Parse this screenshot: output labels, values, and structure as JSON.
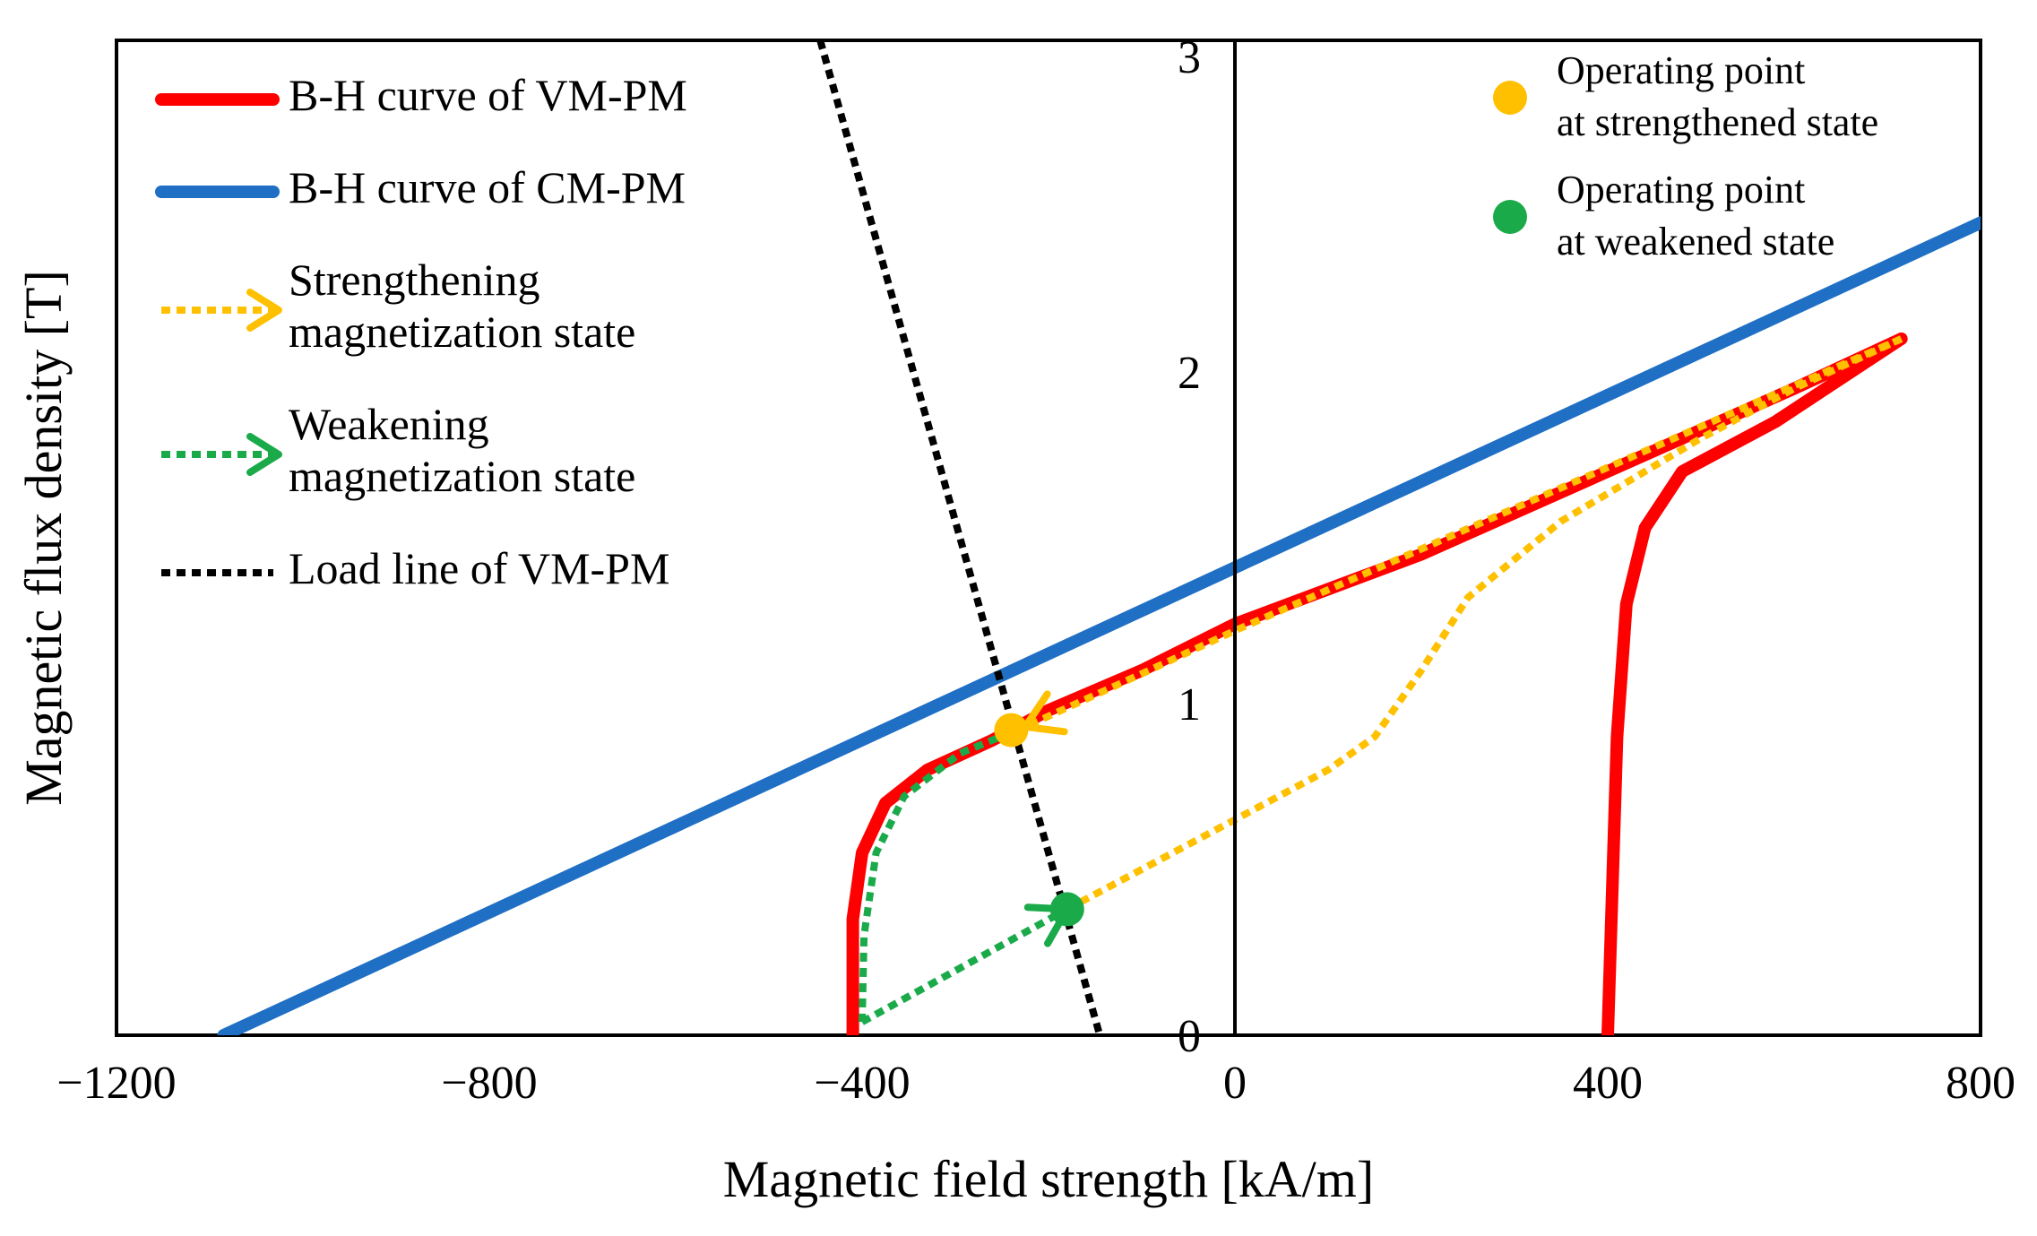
{
  "chart_data": {
    "type": "line",
    "title": "",
    "xlabel": "Magnetic field strength [kA/m]",
    "ylabel": "Magnetic flux density [T]",
    "xlim": [
      -1200,
      800
    ],
    "ylim": [
      0,
      3
    ],
    "x_ticks": [
      -1200,
      -800,
      -400,
      0,
      400,
      800
    ],
    "x_tick_labels": [
      "−1200",
      "−800",
      "−400",
      "0",
      "400",
      "800"
    ],
    "y_ticks": [
      0,
      1,
      2,
      3
    ],
    "y_tick_labels": [
      "0",
      "1",
      "2",
      "3"
    ],
    "grid": false,
    "series": [
      {
        "name": "B-H curve of VM-PM",
        "color": "#ff0000",
        "style": "solid",
        "segments": [
          [
            [
              -410,
              0
            ],
            [
              -410,
              0.35
            ],
            [
              -400,
              0.55
            ],
            [
              -375,
              0.7
            ],
            [
              -330,
              0.8
            ],
            [
              -260,
              0.89
            ],
            [
              -200,
              0.98
            ],
            [
              -100,
              1.1
            ],
            [
              0,
              1.24
            ],
            [
              200,
              1.45
            ],
            [
              400,
              1.7
            ],
            [
              600,
              1.95
            ],
            [
              715,
              2.1
            ]
          ],
          [
            [
              400,
              0
            ],
            [
              410,
              0.9
            ],
            [
              420,
              1.3
            ],
            [
              440,
              1.53
            ],
            [
              480,
              1.7
            ],
            [
              580,
              1.85
            ],
            [
              715,
              2.1
            ]
          ]
        ]
      },
      {
        "name": "B-H curve of CM-PM",
        "color": "#1f6fc4",
        "style": "solid",
        "segments": [
          [
            [
              -1085,
              0
            ],
            [
              800,
              2.45
            ]
          ]
        ]
      },
      {
        "name": "Strengthening magnetization state",
        "color": "#ffc000",
        "style": "dotted",
        "arrow_at": [
          -225,
          0.93
        ],
        "segments": [
          [
            [
              -180,
              0.38
            ],
            [
              0,
              0.65
            ],
            [
              100,
              0.8
            ],
            [
              150,
              0.9
            ],
            [
              200,
              1.1
            ],
            [
              250,
              1.32
            ],
            [
              350,
              1.55
            ],
            [
              500,
              1.8
            ],
            [
              600,
              1.95
            ],
            [
              715,
              2.1
            ]
          ],
          [
            [
              715,
              2.1
            ],
            [
              0,
              1.22
            ],
            [
              -100,
              1.09
            ],
            [
              -225,
              0.93
            ]
          ]
        ]
      },
      {
        "name": "Weakening magnetization state",
        "color": "#1aaa4a",
        "style": "dotted",
        "arrow_at": [
          -180,
          0.38
        ],
        "segments": [
          [
            [
              -225,
              0.93
            ],
            [
              -295,
              0.85
            ],
            [
              -355,
              0.72
            ],
            [
              -385,
              0.55
            ],
            [
              -398,
              0.3
            ],
            [
              -400,
              0.04
            ]
          ],
          [
            [
              -400,
              0.04
            ],
            [
              -180,
              0.38
            ]
          ]
        ]
      },
      {
        "name": "Load line of VM-PM",
        "color": "#000000",
        "style": "dotted",
        "segments": [
          [
            [
              -445,
              3
            ],
            [
              -145,
              0
            ]
          ]
        ]
      }
    ],
    "points": [
      {
        "name": "Operating point at strengthened state",
        "x": -240,
        "y": 0.92,
        "color": "#ffc000"
      },
      {
        "name": "Operating point at weakened state",
        "x": -180,
        "y": 0.38,
        "color": "#1aaa4a"
      }
    ],
    "legend": {
      "placement": "top-left",
      "items": [
        {
          "lines": [
            "B-H curve of VM-PM"
          ],
          "color": "#ff0000",
          "style": "solid",
          "arrow": false
        },
        {
          "lines": [
            "B-H curve of CM-PM"
          ],
          "color": "#1f6fc4",
          "style": "solid",
          "arrow": false
        },
        {
          "lines": [
            "Strengthening",
            "magnetization state"
          ],
          "color": "#ffc000",
          "style": "dotted",
          "arrow": true
        },
        {
          "lines": [
            "Weakening",
            "magnetization state"
          ],
          "color": "#1aaa4a",
          "style": "dotted",
          "arrow": true
        },
        {
          "lines": [
            "Load line of VM-PM"
          ],
          "color": "#000000",
          "style": "dotted",
          "arrow": false
        }
      ]
    },
    "annotations": [
      {
        "lines": [
          "Operating point",
          "at strengthened state"
        ],
        "color": "#ffc000",
        "placement": "top-right"
      },
      {
        "lines": [
          "Operating point",
          "at weakened state"
        ],
        "color": "#1aaa4a",
        "placement": "top-right"
      }
    ]
  }
}
